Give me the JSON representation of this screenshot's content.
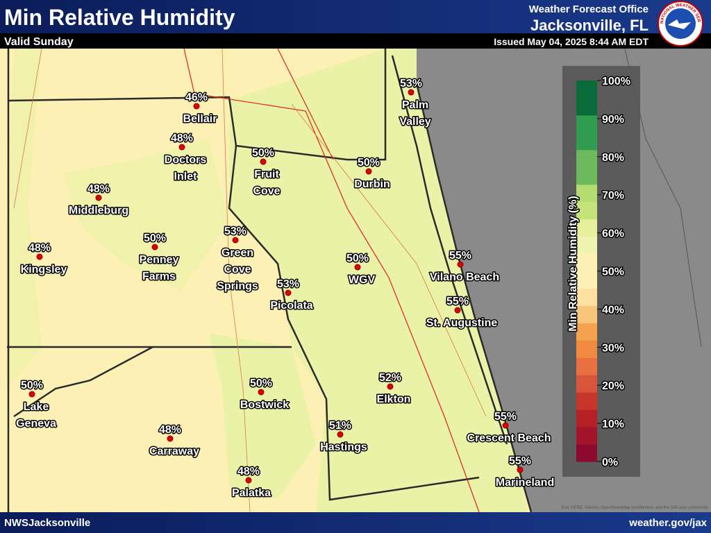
{
  "header": {
    "title": "Min Relative Humidity",
    "subtitle": "Valid Sunday",
    "office": "Weather Forecast Office",
    "location": "Jacksonville, FL",
    "issued": "Issued May 04, 2025 8:44 AM EDT",
    "logo_text": "NATIONAL WEATHER SERVICE"
  },
  "footer": {
    "left": "NWSJacksonville",
    "right": "weather.gov/jax",
    "attribution": "Esri, HERE, Garmin, OpenStreetMap contributors, and the GIS user community"
  },
  "points": [
    {
      "label": "46%",
      "name": [
        "Bellair"
      ]
    },
    {
      "label": "48%",
      "name": [
        "Doctors",
        "Inlet"
      ]
    },
    {
      "label": "48%",
      "name": [
        "Middleburg"
      ]
    },
    {
      "label": "48%",
      "name": [
        "Kingsley"
      ]
    },
    {
      "label": "50%",
      "name": [
        "Penney",
        "Farms"
      ]
    },
    {
      "label": "53%",
      "name": [
        "Green",
        "Cove",
        "Springs"
      ]
    },
    {
      "label": "50%",
      "name": [
        "Fruit",
        "Cove"
      ]
    },
    {
      "label": "50%",
      "name": [
        "Durbin"
      ]
    },
    {
      "label": "53%",
      "name": [
        "Palm",
        "Valley"
      ]
    },
    {
      "label": "50%",
      "name": [
        "WGV"
      ]
    },
    {
      "label": "53%",
      "name": [
        "Picolata"
      ]
    },
    {
      "label": "55%",
      "name": [
        "Vilano Beach"
      ]
    },
    {
      "label": "55%",
      "name": [
        "St. Augustine"
      ]
    },
    {
      "label": "52%",
      "name": [
        "Elkton"
      ]
    },
    {
      "label": "50%",
      "name": [
        "Bostwick"
      ]
    },
    {
      "label": "50%",
      "name": [
        "Lake",
        "Geneva"
      ]
    },
    {
      "label": "51%",
      "name": [
        "Hastings"
      ]
    },
    {
      "label": "48%",
      "name": [
        "Carraway"
      ]
    },
    {
      "label": "48%",
      "name": [
        "Palatka"
      ]
    },
    {
      "label": "55%",
      "name": [
        "Crescent Beach"
      ]
    },
    {
      "label": "55%",
      "name": [
        "Marineland"
      ]
    }
  ],
  "legend": {
    "title": "Min Relative Humidity (%)",
    "ticks": [
      "0%",
      "10%",
      "20%",
      "30%",
      "40%",
      "50%",
      "60%",
      "70%",
      "80%",
      "90%",
      "100%"
    ],
    "colors": [
      "#8c0a2e",
      "#a3142b",
      "#b52027",
      "#c8352b",
      "#d9553a",
      "#e87040",
      "#f08a40",
      "#f5a24e",
      "#f9c57a",
      "#fde0a0",
      "#fdf0b4",
      "#fdf0b4",
      "#eef4b0",
      "#e6f09c",
      "#c4e47a",
      "#b5dc70",
      "#6cba5c",
      "#6cba5c",
      "#2f9c4f",
      "#2f9c4f"
    ],
    "top_colors": [
      "#0a6b3a",
      "#0a6b3a"
    ]
  }
}
